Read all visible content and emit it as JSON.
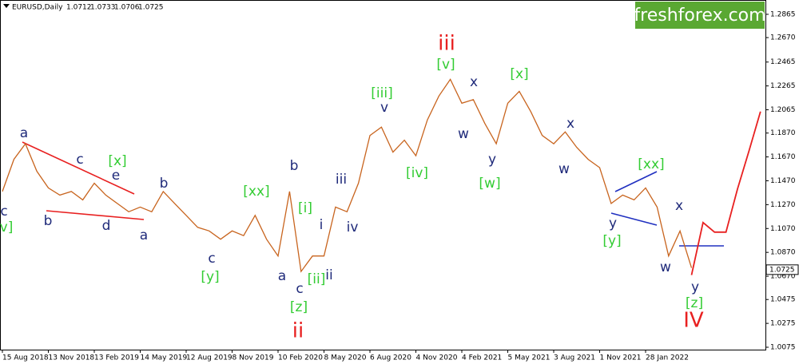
{
  "chart_data": {
    "type": "line",
    "symbol": "EURUSD,Daily",
    "ohlc": [
      1.0712,
      1.0733,
      1.0706,
      1.0725
    ],
    "watermark": "freshforex.com",
    "last_price": 1.0725,
    "categories": [
      "15 Aug 2018",
      null,
      null,
      null,
      "13 Nov 2018",
      null,
      null,
      null,
      "13 Feb 2019",
      null,
      null,
      null,
      "14 May 2019",
      null,
      null,
      null,
      "12 Aug 2019",
      null,
      null,
      null,
      "8 Nov 2019",
      null,
      null,
      null,
      "10 Feb 2020",
      null,
      null,
      null,
      "8 May 2020",
      null,
      null,
      null,
      "6 Aug 2020",
      null,
      null,
      null,
      "4 Nov 2020",
      null,
      null,
      null,
      "4 Feb 2021",
      null,
      null,
      null,
      "5 May 2021",
      null,
      null,
      null,
      "3 Aug 2021",
      null,
      null,
      null,
      "1 Nov 2021",
      null,
      null,
      null,
      "28 Jan 2022",
      null,
      null,
      null,
      null,
      null,
      null,
      null,
      null,
      null,
      null
    ],
    "series": [
      {
        "color": "#c8641e",
        "values": [
          1.138,
          1.165,
          1.178,
          1.155,
          1.141,
          1.135,
          1.138,
          1.131,
          1.145,
          1.135,
          1.128,
          1.121,
          1.125,
          1.121,
          1.138,
          1.128,
          1.118,
          1.108,
          1.105,
          1.098,
          1.105,
          1.101,
          1.118,
          1.098,
          1.084,
          1.138,
          1.071,
          1.084,
          1.084,
          1.125,
          1.121,
          1.145,
          1.185,
          1.192,
          1.171,
          1.181,
          1.168,
          1.198,
          1.218,
          1.232,
          1.212,
          1.215,
          1.195,
          1.178,
          1.212,
          1.222,
          1.205,
          1.185,
          1.178,
          1.188,
          1.175,
          1.165,
          1.158,
          1.128,
          1.135,
          1.131,
          1.141,
          1.125,
          1.084,
          1.105,
          1.074,
          null,
          null,
          null,
          null,
          null,
          null
        ]
      },
      {
        "color": "#e82020",
        "values": [
          null,
          null,
          null,
          null,
          null,
          null,
          null,
          null,
          null,
          null,
          null,
          null,
          null,
          null,
          null,
          null,
          null,
          null,
          null,
          null,
          null,
          null,
          null,
          null,
          null,
          null,
          null,
          null,
          null,
          null,
          null,
          null,
          null,
          null,
          null,
          null,
          null,
          null,
          null,
          null,
          null,
          null,
          null,
          null,
          null,
          null,
          null,
          null,
          null,
          null,
          null,
          null,
          null,
          null,
          null,
          null,
          null,
          null,
          null,
          null,
          1.068,
          1.112,
          1.104,
          1.104,
          1.14,
          1.172,
          1.205
        ]
      }
    ],
    "ylim": [
      1.0055,
      1.2985
    ],
    "yticks": [
      1.2865,
      {
        "value": 1.267,
        "label": "1.2670"
      },
      1.2465,
      1.2265,
      1.2065,
      {
        "value": 1.187,
        "label": "1.1870"
      },
      {
        "value": 1.167,
        "label": "1.1670"
      },
      {
        "value": 1.147,
        "label": "1.1470"
      },
      {
        "value": 1.127,
        "label": "1.1270"
      },
      {
        "value": 1.107,
        "label": "1.1070"
      },
      {
        "value": 1.087,
        "label": "1.0870"
      },
      {
        "value": 1.067,
        "label": "1.0670"
      },
      1.0475,
      1.0275,
      1.0075
    ],
    "annotations": [
      {
        "text": "c",
        "color": "#1f2a7a"
      },
      {
        "text": "v]",
        "color": "#33cc33"
      },
      {
        "text": "a",
        "color": "#1f2a7a"
      },
      {
        "text": "b",
        "color": "#1f2a7a"
      },
      {
        "text": "c",
        "color": "#1f2a7a"
      },
      {
        "text": "[x]",
        "color": "#33cc33"
      },
      {
        "text": "e",
        "color": "#1f2a7a"
      },
      {
        "text": "d",
        "color": "#1f2a7a"
      },
      {
        "text": "a",
        "color": "#1f2a7a"
      },
      {
        "text": "b",
        "color": "#1f2a7a"
      },
      {
        "text": "c",
        "color": "#1f2a7a"
      },
      {
        "text": "[y]",
        "color": "#33cc33"
      },
      {
        "text": "[xx]",
        "color": "#33cc33"
      },
      {
        "text": "a",
        "color": "#1f2a7a"
      },
      {
        "text": "b",
        "color": "#1f2a7a"
      },
      {
        "text": "[i]",
        "color": "#33cc33"
      },
      {
        "text": "c",
        "color": "#1f2a7a"
      },
      {
        "text": "[ii]",
        "color": "#33cc33"
      },
      {
        "text": "ii",
        "color": "#1f2a7a"
      },
      {
        "text": "i",
        "color": "#1f2a7a"
      },
      {
        "text": "iii",
        "color": "#1f2a7a"
      },
      {
        "text": "iv",
        "color": "#1f2a7a"
      },
      {
        "text": "[z]",
        "color": "#33cc33"
      },
      {
        "text": "ii",
        "color": "#e82020"
      },
      {
        "text": "[iii]",
        "color": "#33cc33"
      },
      {
        "text": "v",
        "color": "#1f2a7a"
      },
      {
        "text": "[iv]",
        "color": "#33cc33"
      },
      {
        "text": "iii",
        "color": "#e82020"
      },
      {
        "text": "[v]",
        "color": "#33cc33"
      },
      {
        "text": "x",
        "color": "#1f2a7a"
      },
      {
        "text": "w",
        "color": "#1f2a7a"
      },
      {
        "text": "y",
        "color": "#1f2a7a"
      },
      {
        "text": "[w]",
        "color": "#33cc33"
      },
      {
        "text": "[x]",
        "color": "#33cc33"
      },
      {
        "text": "x",
        "color": "#1f2a7a"
      },
      {
        "text": "w",
        "color": "#1f2a7a"
      },
      {
        "text": "[xx]",
        "color": "#33cc33"
      },
      {
        "text": "y",
        "color": "#1f2a7a"
      },
      {
        "text": "[y]",
        "color": "#33cc33"
      },
      {
        "text": "x",
        "color": "#1f2a7a"
      },
      {
        "text": "w",
        "color": "#1f2a7a"
      },
      {
        "text": "y",
        "color": "#1f2a7a"
      },
      {
        "text": "[z]",
        "color": "#33cc33"
      },
      {
        "text": "IV",
        "color": "#e82020"
      }
    ]
  }
}
